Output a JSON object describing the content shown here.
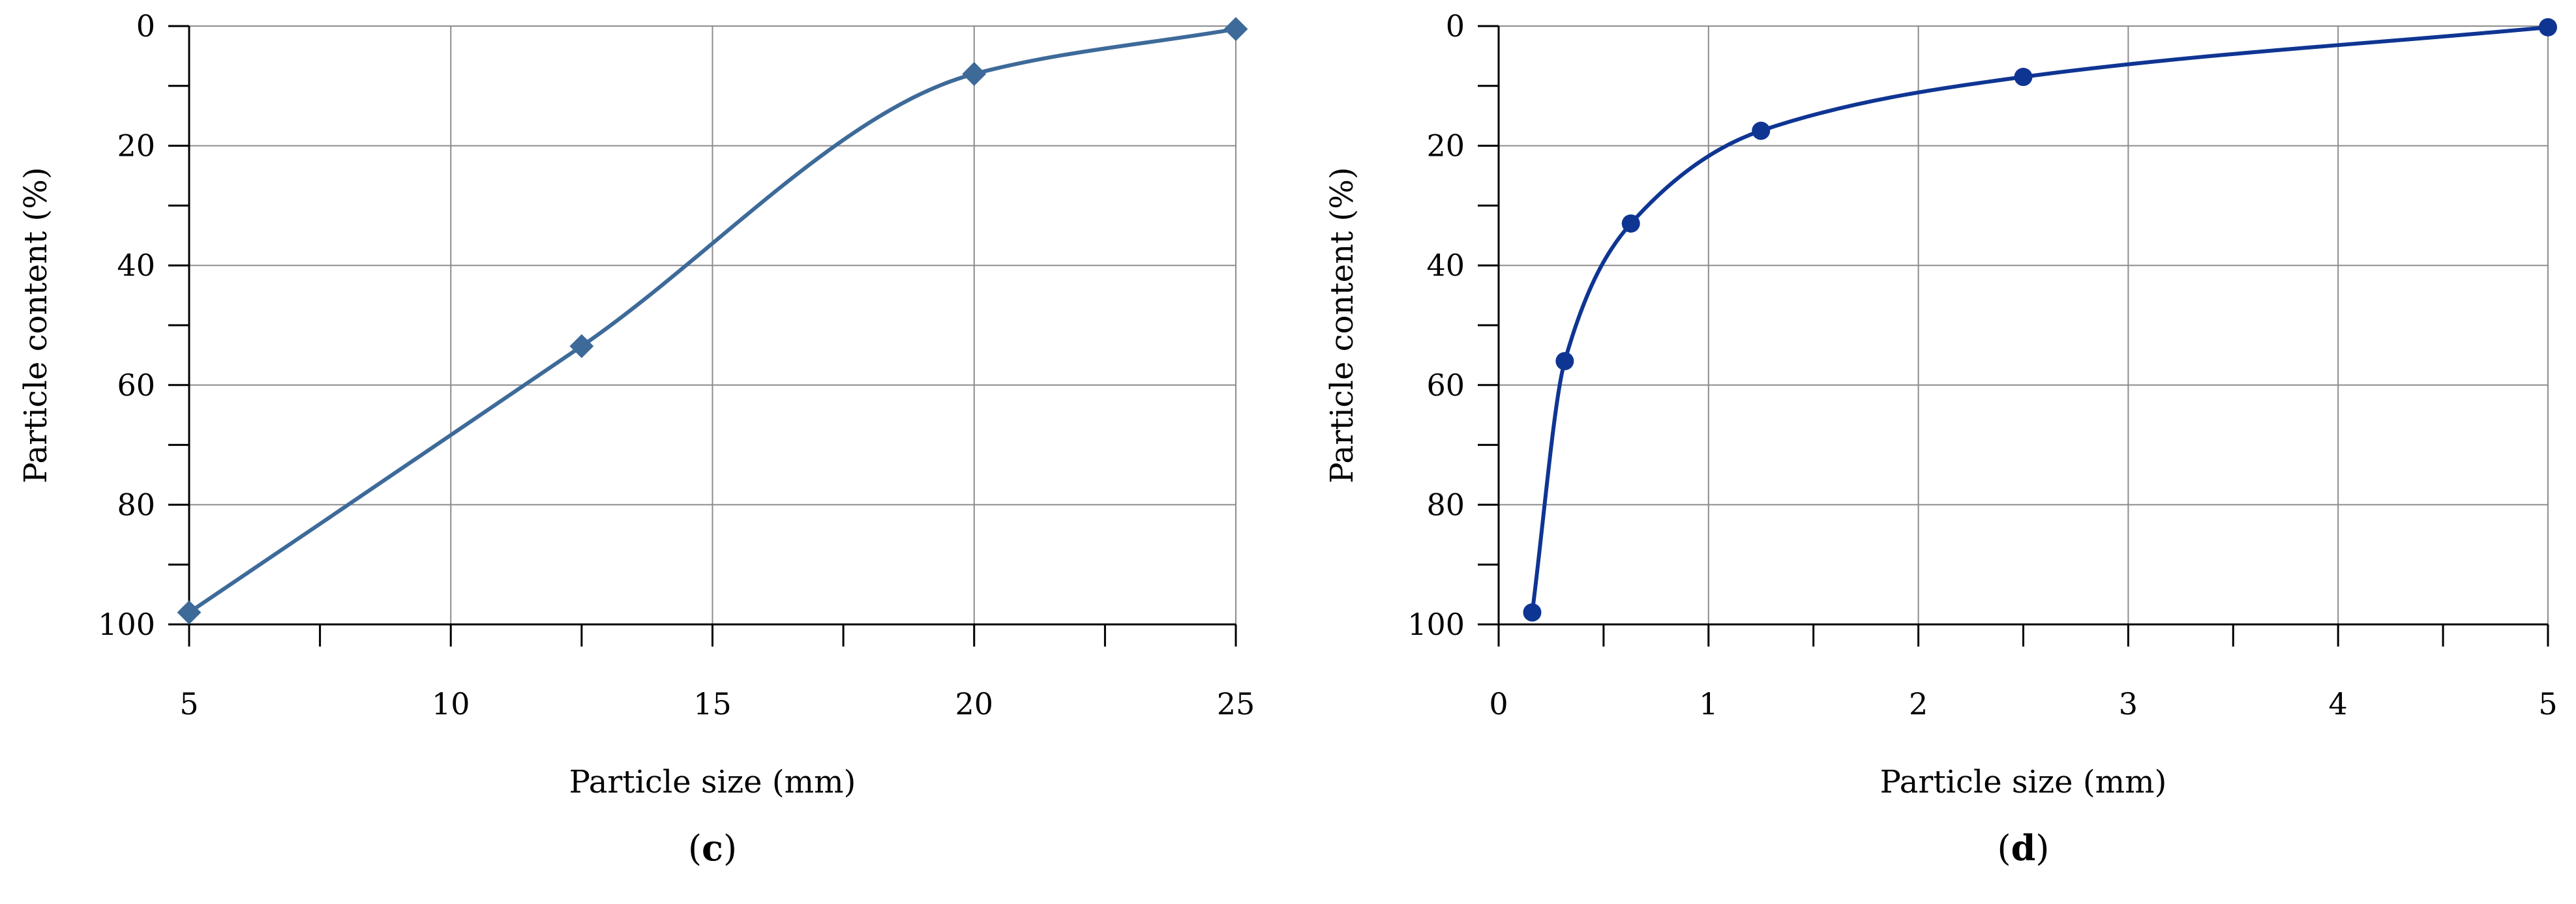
{
  "chart_data": [
    {
      "type": "line",
      "panel_label": {
        "open": "(",
        "letter": "c",
        "close": ")"
      },
      "xlabel": "Particle size (mm)",
      "ylabel": "Particle content (%)",
      "xlim": [
        5,
        25
      ],
      "ylim": [
        0,
        100
      ],
      "y_inverted": true,
      "x_major_ticks": [
        5,
        10,
        15,
        20,
        25
      ],
      "x_minor_ticks": [
        7.5,
        12.5,
        17.5,
        22.5
      ],
      "y_major_ticks": [
        0,
        20,
        40,
        60,
        80,
        100
      ],
      "y_minor_ticks": [
        10,
        30,
        50,
        70,
        90
      ],
      "grid": true,
      "marker": "diamond",
      "color": "#3d6a99",
      "x": [
        5,
        12.5,
        20,
        25
      ],
      "y": [
        98,
        53.5,
        8,
        0.5
      ]
    },
    {
      "type": "line",
      "panel_label": {
        "open": "(",
        "letter": "d",
        "close": ")"
      },
      "xlabel": "Particle size (mm)",
      "ylabel": "Particle content (%)",
      "xlim": [
        0,
        5
      ],
      "ylim": [
        0,
        100
      ],
      "y_inverted": true,
      "x_major_ticks": [
        0,
        1,
        2,
        3,
        4,
        5
      ],
      "x_minor_ticks": [
        0.5,
        1.5,
        2.5,
        3.5,
        4.5
      ],
      "y_major_ticks": [
        0,
        20,
        40,
        60,
        80,
        100
      ],
      "y_minor_ticks": [
        10,
        30,
        50,
        70,
        90
      ],
      "grid": true,
      "marker": "circle",
      "color": "#0f3593",
      "x": [
        0.16,
        0.315,
        0.63,
        1.25,
        2.5,
        5
      ],
      "y": [
        98,
        56,
        33,
        17.5,
        8.5,
        0.2
      ]
    }
  ]
}
